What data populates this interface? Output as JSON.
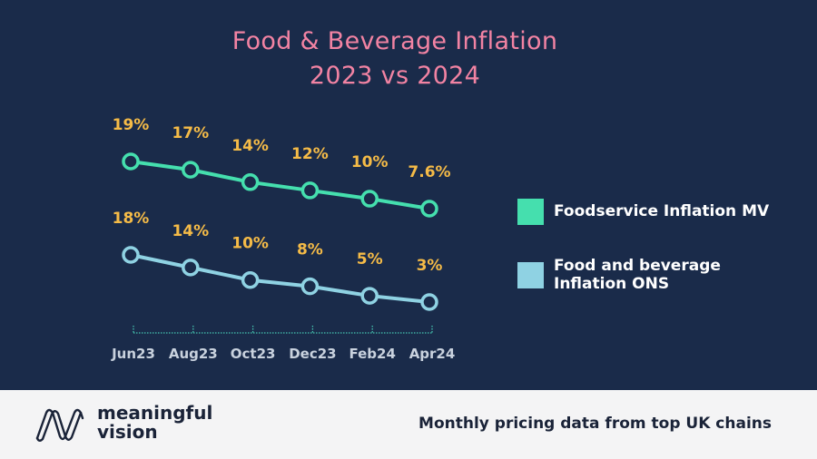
{
  "chart_data": {
    "type": "line",
    "title": "Food & Beverage Inflation",
    "subtitle": "2023 vs 2024",
    "categories": [
      "Jun23",
      "Aug23",
      "Oct23",
      "Dec23",
      "Feb24",
      "Apr24"
    ],
    "series": [
      {
        "name": "Foodservice Inflation MV",
        "values": [
          19,
          17,
          14,
          12,
          10,
          7.6
        ],
        "labels": [
          "19%",
          "17%",
          "14%",
          "12%",
          "10%",
          "7.6%"
        ],
        "color": "#45dfae"
      },
      {
        "name": "Food and beverage Inflation ONS",
        "values": [
          18,
          14,
          10,
          8,
          5,
          3
        ],
        "labels": [
          "18%",
          "14%",
          "10%",
          "8%",
          "5%",
          "3%"
        ],
        "color": "#8fd2e3"
      }
    ],
    "xlabel": "",
    "ylabel": "",
    "grid": false,
    "legend": "right",
    "label_color": "#f5bb47"
  },
  "title": {
    "line1": "Food & Beverage Inflation",
    "line2": "2023 vs 2024"
  },
  "legend": {
    "items": [
      {
        "label": "Foodservice Inflation MV",
        "color": "#45dfae"
      },
      {
        "label_line1": "Food and beverage",
        "label_line2": "Inflation ONS",
        "color": "#8fd2e3"
      }
    ]
  },
  "footer": {
    "brand_line1": "meaningful",
    "brand_line2": "vision",
    "tagline": "Monthly pricing data from top UK chains",
    "logo_icon": "meaningful-vision-logo-icon"
  },
  "colors": {
    "background": "#1a2b4a",
    "title": "#f283a3",
    "footer_bg": "#f4f4f5",
    "footer_text": "#1a2338",
    "axis": "#45c4b0",
    "tick_label": "#c9d2de"
  }
}
